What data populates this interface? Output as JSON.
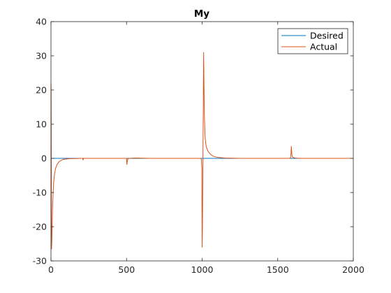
{
  "chart_data": {
    "type": "line",
    "title": "My",
    "xlabel": "",
    "ylabel": "",
    "xlim": [
      0,
      2000
    ],
    "ylim": [
      -30,
      40
    ],
    "xticks": [
      0,
      500,
      1000,
      1500,
      2000
    ],
    "yticks": [
      -30,
      -20,
      -10,
      0,
      10,
      20,
      30,
      40
    ],
    "grid": false,
    "legend_position": "top-right",
    "series": [
      {
        "name": "Desired",
        "color": "#0072BD",
        "x": [
          0,
          2000
        ],
        "y": [
          0,
          0
        ]
      },
      {
        "name": "Actual",
        "color": "#D95319",
        "x": [
          0,
          1,
          2,
          3,
          4,
          6,
          8,
          10,
          14,
          18,
          24,
          30,
          40,
          55,
          80,
          120,
          200,
          210,
          212,
          214,
          216,
          230,
          300,
          400,
          490,
          500,
          502,
          504,
          506,
          508,
          512,
          518,
          530,
          560,
          650,
          800,
          900,
          990,
          995,
          998,
          1000,
          1002,
          1004,
          1006,
          1008,
          1010,
          1012,
          1015,
          1020,
          1025,
          1030,
          1040,
          1055,
          1075,
          1100,
          1150,
          1250,
          1400,
          1580,
          1585,
          1588,
          1590,
          1592,
          1594,
          1597,
          1600,
          1605,
          1615,
          1630,
          1660,
          1700,
          1800,
          1900,
          2000
        ],
        "y": [
          22,
          20,
          8,
          -20,
          -26.5,
          -24,
          -19,
          -15,
          -10,
          -7,
          -4.5,
          -3,
          -1.8,
          -0.9,
          -0.3,
          -0.1,
          0,
          0,
          -0.5,
          -0.2,
          0,
          0,
          0,
          0,
          0,
          0,
          -1.8,
          -1.2,
          -0.6,
          -0.3,
          -0.1,
          0,
          0.05,
          0.1,
          0,
          0,
          0,
          0,
          -0.3,
          -3,
          -26,
          -20,
          -8,
          5,
          18,
          31,
          22,
          12,
          6,
          4,
          3,
          2,
          1.2,
          0.6,
          0.3,
          0.1,
          0,
          0,
          0,
          0.2,
          1.5,
          3.5,
          2.2,
          1,
          0.5,
          0.3,
          0.2,
          0.1,
          0.05,
          0,
          0,
          0,
          0,
          0
        ]
      }
    ]
  }
}
